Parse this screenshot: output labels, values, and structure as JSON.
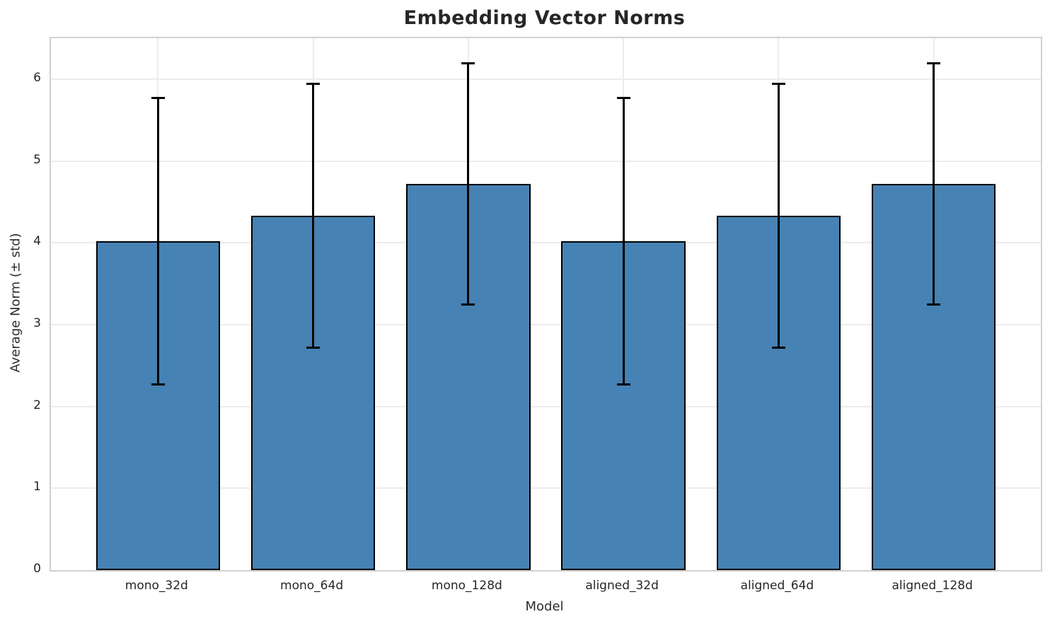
{
  "chart_data": {
    "type": "bar",
    "title": "Embedding Vector Norms",
    "xlabel": "Model",
    "ylabel": "Average Norm (± std)",
    "categories": [
      "mono_32d",
      "mono_64d",
      "mono_128d",
      "aligned_32d",
      "aligned_64d",
      "aligned_128d"
    ],
    "values": [
      4.02,
      4.33,
      4.72,
      4.02,
      4.33,
      4.72
    ],
    "errors": [
      1.75,
      1.61,
      1.47,
      1.75,
      1.61,
      1.47
    ],
    "error_tops": [
      5.77,
      5.94,
      6.19,
      5.77,
      5.94,
      6.19
    ],
    "error_bottoms": [
      2.27,
      2.72,
      3.25,
      2.27,
      2.72,
      3.25
    ],
    "yticks": [
      0,
      1,
      2,
      3,
      4,
      5,
      6
    ],
    "ylim": [
      0,
      6.5
    ],
    "grid": true,
    "legend": false,
    "bar_color": "#4682b4",
    "bar_edge_color": "#000000",
    "grid_color": "#ececec",
    "spine_color": "#d0d0d0",
    "text_color": "#262626"
  }
}
